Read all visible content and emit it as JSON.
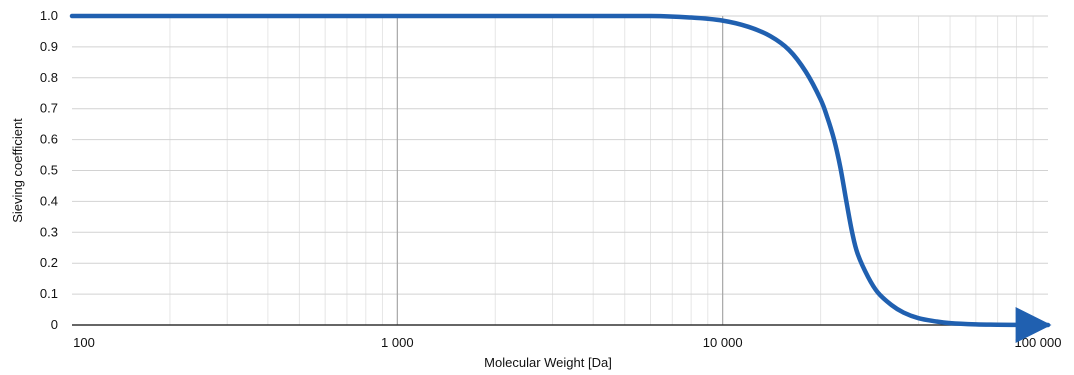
{
  "chart_data": {
    "type": "line",
    "title": "",
    "xlabel": "Molecular Weight [Da]",
    "ylabel": "Sieving coefficient",
    "xscale": "log",
    "xlim": [
      100,
      100000
    ],
    "ylim": [
      0,
      1.0
    ],
    "grid": true,
    "legend": "none",
    "x_tick_labels": [
      "100",
      "1 000",
      "10 000",
      "100 000"
    ],
    "x_tick_values": [
      100,
      1000,
      10000,
      100000
    ],
    "y_tick_labels": [
      "0",
      "0.1",
      "0.2",
      "0.3",
      "0.4",
      "0.5",
      "0.6",
      "0.7",
      "0.8",
      "0.9",
      "1.0"
    ],
    "y_tick_values": [
      0,
      0.1,
      0.2,
      0.3,
      0.4,
      0.5,
      0.6,
      0.7,
      0.8,
      0.9,
      1.0
    ],
    "series": [
      {
        "color": "#2060b0",
        "x": [
          100,
          1000,
          3000,
          6000,
          8000,
          10000,
          12000,
          14000,
          16000,
          18000,
          20000,
          21000,
          22000,
          23000,
          24000,
          25000,
          26000,
          28000,
          30000,
          33000,
          36000,
          40000,
          45000,
          50000,
          60000,
          70000,
          85000,
          100000
        ],
        "y": [
          1.0,
          1.0,
          1.0,
          1.0,
          0.995,
          0.985,
          0.965,
          0.935,
          0.89,
          0.82,
          0.73,
          0.67,
          0.6,
          0.51,
          0.4,
          0.3,
          0.23,
          0.155,
          0.105,
          0.065,
          0.04,
          0.022,
          0.012,
          0.006,
          0.002,
          0.001,
          0.0,
          0.0
        ]
      }
    ]
  }
}
